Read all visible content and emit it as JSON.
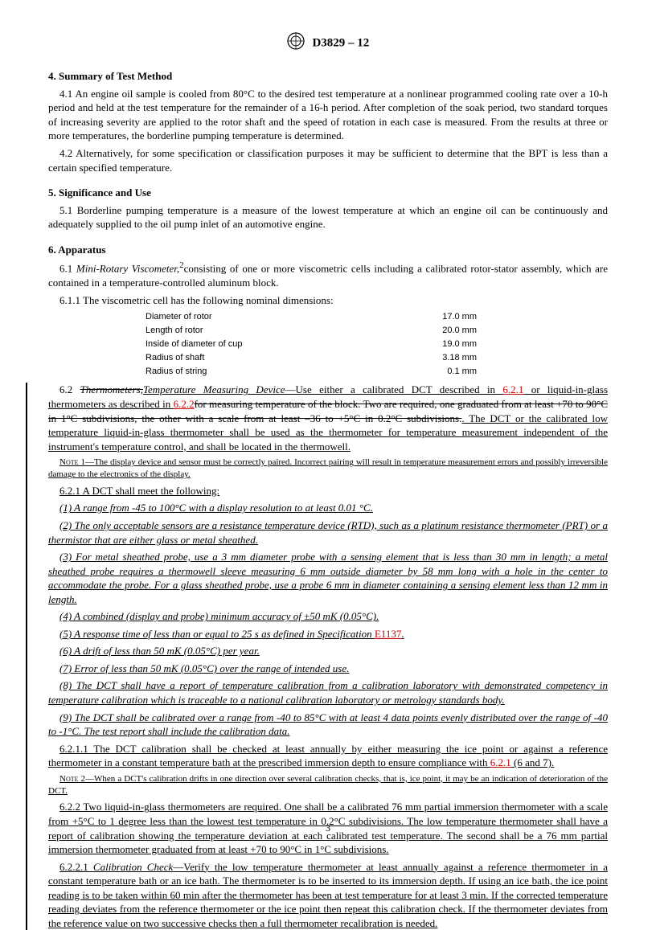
{
  "header": {
    "designation": "D3829 – 12"
  },
  "s4": {
    "title": "4. Summary of Test Method",
    "p41": "4.1 An engine oil sample is cooled from 80°C to the desired test temperature at a nonlinear programmed cooling rate over a 10-h period and held at the test temperature for the remainder of a 16-h period. After completion of the soak period, two standard torques of increasing severity are applied to the rotor shaft and the speed of rotation in each case is measured. From the results at three or more temperatures, the borderline pumping temperature is determined.",
    "p42": "4.2 Alternatively, for some specification or classification purposes it may be sufficient to determine that the BPT is less than a certain specified temperature."
  },
  "s5": {
    "title": "5. Significance and Use",
    "p51": "5.1 Borderline pumping temperature is a measure of the lowest temperature at which an engine oil can be continuously and adequately supplied to the oil pump inlet of an automotive engine."
  },
  "s6": {
    "title": "6. Apparatus",
    "p61a": "6.1 ",
    "p61term": "Mini-Rotary Viscometer,",
    "p61b": "consisting of one or more viscometric cells including a calibrated rotor-stator assembly, which are contained in a temperature-controlled aluminum block.",
    "p611": "6.1.1 The viscometric cell has the following nominal dimensions:",
    "dims": [
      [
        "Diameter of rotor",
        "17.0 mm"
      ],
      [
        "Length of rotor",
        "20.0 mm"
      ],
      [
        "Inside of diameter of cup",
        "19.0 mm"
      ],
      [
        "Radius of shaft",
        "3.18 mm"
      ],
      [
        "Radius of string",
        "0.1 mm"
      ]
    ],
    "p62_lead": "6.2 ",
    "p62_strike1": "Thermometers,",
    "p62_underTerm": "Temperature Measuring Device",
    "p62_mid1": "—Use either a calibrated DCT described in ",
    "p62_ref1": "6.2.1",
    "p62_mid2": " or liquid-in-glass thermometers as described in ",
    "p62_ref2": "6.2.2",
    "p62_strike2": "for measuring temperature of the block. Two are required, one graduated from at least +70 to 90°C in 1°C subdivisions, the other with a scale from at least –36 to +5°C in 0.2°C subdivisions.",
    "p62_underTail": ". The DCT or the calibrated low temperature liquid-in-glass thermometer shall be used as the thermometer for temperature measurement independent of the instrument's temperature control, and shall be located in the thermowell.",
    "note1_label": "Note 1—",
    "note1": "The display device and sensor must be correctly paired. Incorrect pairing will result in temperature measurement errors and possibly irreversible damage to the electronics of the display.",
    "p621": "6.2.1 A DCT shall meet the following:",
    "i1": "(1) A range from -45 to 100°C with a display resolution to at least 0.01 °C.",
    "i2": "(2) The only acceptable sensors are a resistance temperature device (RTD), such as a platinum resistance thermometer (PRT) or a thermistor that are either glass or metal sheathed.",
    "i3": "(3) For metal sheathed probe, use a 3 mm diameter probe with a sensing element that is less than 30 mm in length; a metal sheathed probe requires a thermowell sleeve measuring 6 mm outside diameter by 58 mm long with a hole in the center to accommodate the probe. For a glass sheathed probe, use a probe 6 mm in diameter containing a sensing element less than 12 mm in length.",
    "i4": "(4) A combined (display and probe) minimum accuracy of ±50 mK (0.05°C).",
    "i5a": "(5) A response time of less than or equal to 25 s as defined in Specification ",
    "i5ref": "E1137",
    "i5b": ".",
    "i6": "(6) A drift of less than 50 mK (0.05°C) per year.",
    "i7": "(7) Error of less than 50 mK (0.05°C) over the range of intended use.",
    "i8": "(8) The DCT shall have a report of temperature calibration from a calibration laboratory with demonstrated competency in temperature calibration which is traceable to a national calibration laboratory or metrology standards body.",
    "i9": "(9) The DCT shall be calibrated over a range from -40 to 85°C with at least 4 data points evenly distributed over the range of -40 to -1°C. The test report shall include the calibration data.",
    "p6211a": "6.2.1.1 The DCT calibration shall be checked at least annually by either measuring the ice point or against a reference thermometer in a constant temperature bath at the prescribed immersion depth to ensure compliance with ",
    "p6211ref": "6.2.1",
    "p6211b": " (6 and 7).",
    "note2_label": "Note 2—",
    "note2": "When a DCT's calibration drifts in one direction over several calibration checks, that is, ice point, it may be an indication of deterioration of the DCT.",
    "p622": "6.2.2 Two liquid-in-glass thermometers are required. One shall be a calibrated 76 mm partial immersion thermometer with a scale from +5°C to 1 degree less than the lowest test temperature in 0.2°C subdivisions. The low temperature thermometer shall have a report of calibration showing the temperature deviation at each calibrated test temperature. The second shall be a 76 mm partial immersion thermometer graduated from at least +70 to 90°C in 1°C subdivisions.",
    "p6221a": "6.2.2.1 ",
    "p6221term": "Calibration Check",
    "p6221b": "—Verify the low temperature thermometer at least annually against a reference thermometer in a constant temperature bath or an ice bath. The thermometer is to be inserted to its immersion depth. If using an ice bath, the ice point reading is to be taken within 60 min after the thermometer has been at test temperature for at least 3 min. If the corrected temperature reading deviates from the reference thermometer or the ice point then repeat this calibration check. If the thermometer deviates from the reference value on two successive checks then a full thermometer recalibration is needed."
  },
  "pagenum": "3"
}
